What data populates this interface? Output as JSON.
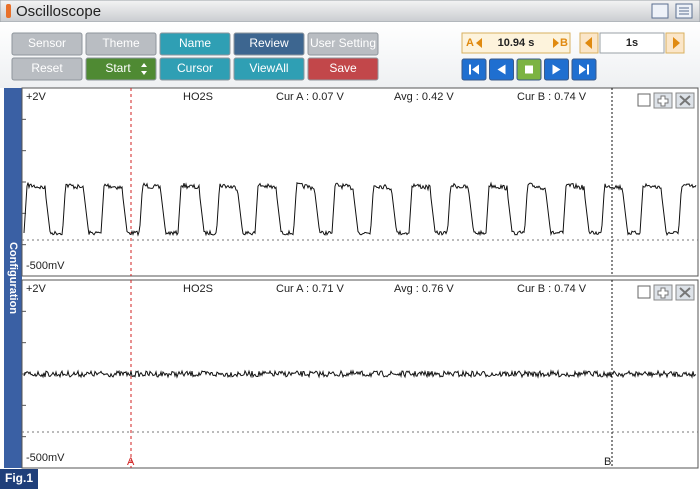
{
  "title_bar": {
    "title": "Oscilloscope"
  },
  "toolbar": {
    "row1": [
      "Sensor",
      "Theme",
      "Name",
      "Review",
      "User Setting"
    ],
    "row2": [
      "Reset",
      "Start",
      "Cursor",
      "ViewAll",
      "Save"
    ],
    "time": {
      "a": "A",
      "value": "10.94 s",
      "b": "B"
    },
    "interval": "1s"
  },
  "side_tab": "Configuration",
  "panels": [
    {
      "range_top": "+2V",
      "sensor": "HO2S",
      "cur_a": "Cur A : 0.07 V",
      "avg": "Avg : 0.42 V",
      "cur_b": "Cur B : 0.74 V",
      "range_bottom": "-500mV"
    },
    {
      "range_top": "+2V",
      "sensor": "HO2S",
      "cur_a": "Cur A : 0.71 V",
      "avg": "Avg : 0.76 V",
      "cur_b": "Cur B : 0.74 V",
      "range_bottom": "-500mV"
    }
  ],
  "cursors": {
    "a": "A",
    "b": "B"
  },
  "figure_label": "Fig.1"
}
